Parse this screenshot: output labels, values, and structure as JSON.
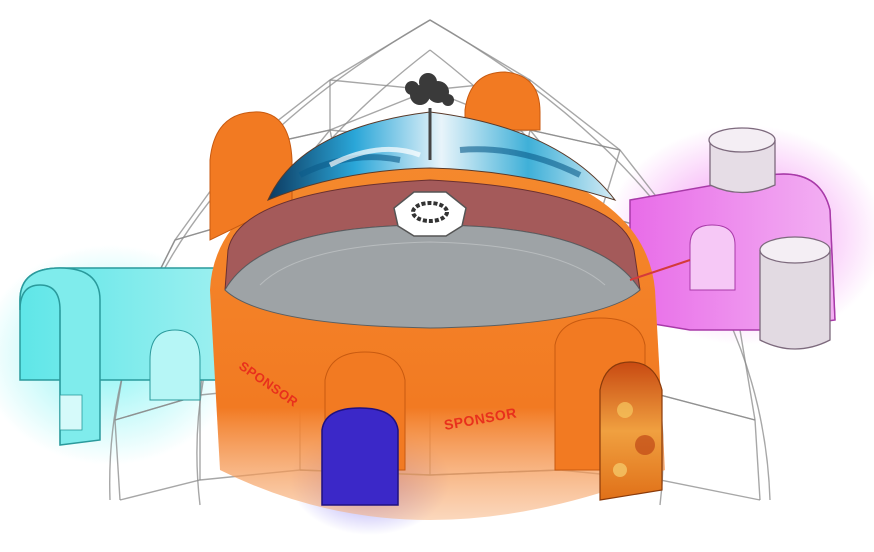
{
  "labels": {
    "sponsor_left": "SPONSOR",
    "sponsor_center": "SPONSOR"
  },
  "colors": {
    "dome_frame": "#8a8a8a",
    "shell_orange": "#f27a22",
    "inner_ring": "#a45a5a",
    "floor": "#9ea3a6",
    "tunnel_cyan": "#3ed8da",
    "tunnel_magenta": "#e04ce0",
    "door_blue": "#3b28c8",
    "door_fire": "#e0801a",
    "sponsor_text": "#e8301c",
    "projection_sky": "#2aa6d8"
  },
  "icons": [
    "geodesic-dome",
    "cloud-tower-icon",
    "octagon-hub-icon",
    "silo-cylinder"
  ]
}
